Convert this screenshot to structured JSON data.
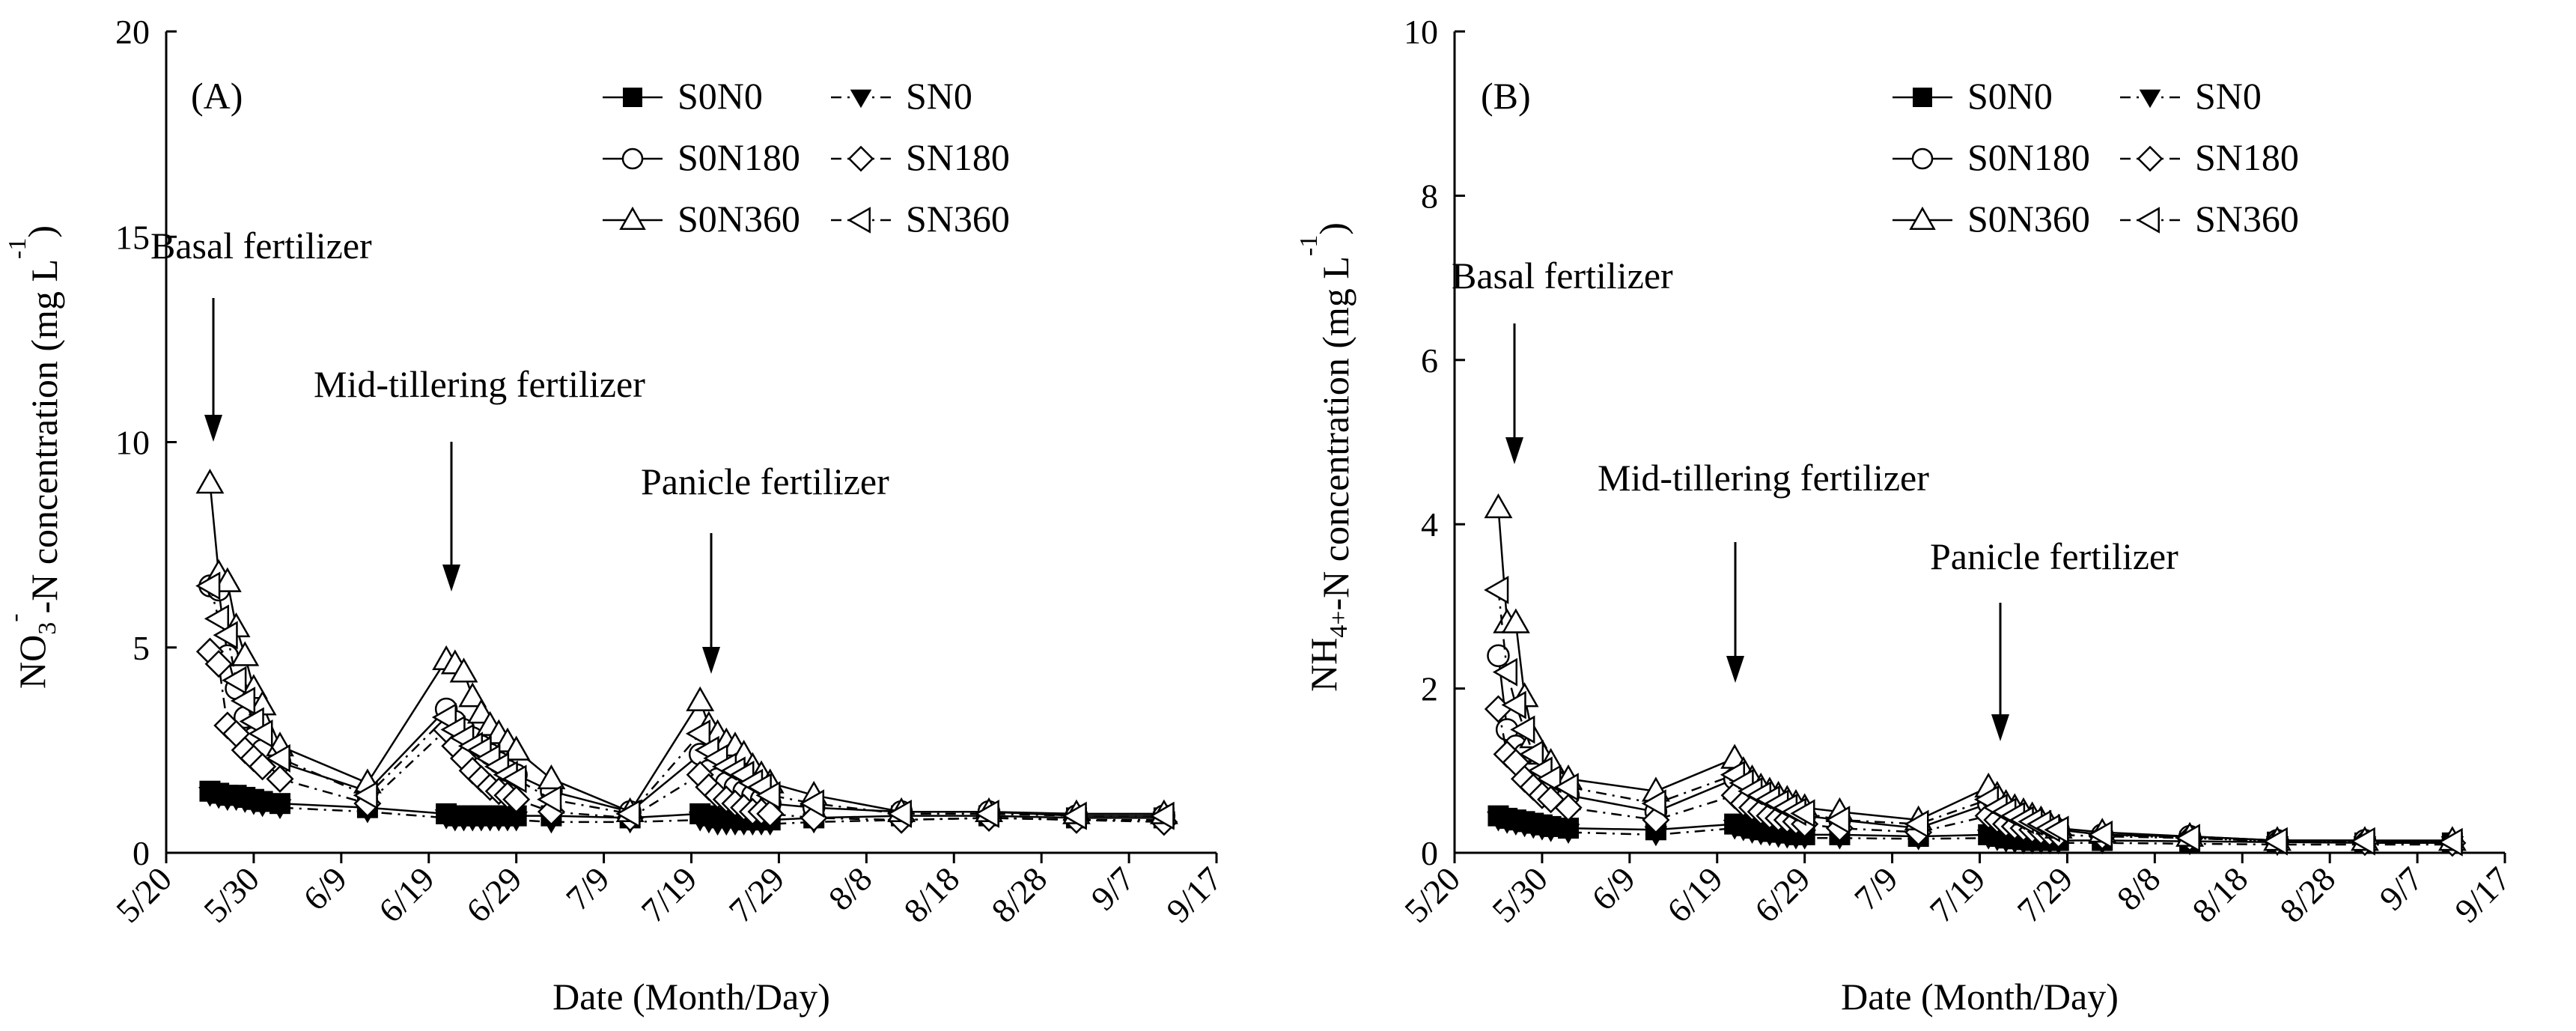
{
  "chart_data": [
    {
      "type": "line",
      "panel_label": "(A)",
      "xlabel": "Date (Month/Day)",
      "ylabel_parts": [
        "NO",
        "3",
        "-",
        "-N concentration (mg L",
        "-1",
        ")"
      ],
      "ylim": [
        0,
        20
      ],
      "yticks": [
        "0",
        "5",
        "10",
        "15",
        "20"
      ],
      "xticks": [
        "5/20",
        "5/30",
        "6/9",
        "6/19",
        "6/29",
        "7/9",
        "7/19",
        "7/29",
        "8/8",
        "8/18",
        "8/28",
        "9/7",
        "9/17"
      ],
      "legend_position": "top-right",
      "annotations": [
        "Basal fertilizer",
        "Mid-tillering fertilizer",
        "Panicle fertilizer"
      ],
      "series": [
        {
          "name": "S0N0",
          "marker": "filled-square",
          "line": "solid",
          "x": [
            "5/25",
            "5/26",
            "5/27",
            "5/28",
            "5/29",
            "5/30",
            "5/31",
            "6/2",
            "6/12",
            "6/21",
            "6/22",
            "6/23",
            "6/24",
            "6/25",
            "6/26",
            "6/27",
            "6/28",
            "6/29",
            "7/3",
            "7/12",
            "7/20",
            "7/21",
            "7/22",
            "7/23",
            "7/24",
            "7/25",
            "7/26",
            "7/27",
            "7/28",
            "8/2",
            "8/12",
            "8/22",
            "9/1",
            "9/11"
          ],
          "y": [
            1.5,
            1.45,
            1.4,
            1.4,
            1.35,
            1.3,
            1.25,
            1.2,
            1.1,
            0.95,
            0.9,
            0.9,
            0.9,
            0.9,
            0.9,
            0.9,
            0.9,
            0.9,
            0.9,
            0.85,
            0.95,
            0.9,
            0.85,
            0.85,
            0.85,
            0.8,
            0.8,
            0.8,
            0.8,
            0.85,
            0.9,
            0.9,
            0.85,
            0.85
          ]
        },
        {
          "name": "SN0",
          "marker": "filled-down-triangle",
          "line": "dashed",
          "x": [
            "5/25",
            "5/26",
            "5/27",
            "5/28",
            "5/29",
            "5/30",
            "5/31",
            "6/2",
            "6/12",
            "6/21",
            "6/22",
            "6/23",
            "6/24",
            "6/25",
            "6/26",
            "6/27",
            "6/28",
            "6/29",
            "7/3",
            "7/12",
            "7/20",
            "7/21",
            "7/22",
            "7/23",
            "7/24",
            "7/25",
            "7/26",
            "7/27",
            "7/28",
            "8/2",
            "8/12",
            "8/22",
            "9/1",
            "9/11"
          ],
          "y": [
            1.4,
            1.35,
            1.3,
            1.3,
            1.25,
            1.2,
            1.15,
            1.1,
            1.0,
            0.85,
            0.8,
            0.8,
            0.8,
            0.8,
            0.8,
            0.8,
            0.8,
            0.8,
            0.75,
            0.75,
            0.8,
            0.75,
            0.7,
            0.7,
            0.7,
            0.7,
            0.7,
            0.7,
            0.7,
            0.75,
            0.8,
            0.85,
            0.8,
            0.8
          ]
        },
        {
          "name": "S0N180",
          "marker": "open-circle",
          "line": "solid",
          "x": [
            "5/25",
            "5/26",
            "5/27",
            "5/28",
            "5/29",
            "5/30",
            "5/31",
            "6/2",
            "6/12",
            "6/21",
            "6/22",
            "6/23",
            "6/24",
            "6/25",
            "6/26",
            "6/27",
            "6/28",
            "6/29",
            "7/3",
            "7/12",
            "7/20",
            "7/21",
            "7/22",
            "7/23",
            "7/24",
            "7/25",
            "7/26",
            "7/27",
            "7/28",
            "8/2",
            "8/12",
            "8/22",
            "9/1",
            "9/11"
          ],
          "y": [
            6.5,
            6.4,
            4.8,
            4.0,
            3.3,
            2.8,
            2.5,
            2.2,
            1.5,
            3.5,
            3.2,
            3.0,
            2.8,
            2.6,
            2.4,
            2.2,
            2.0,
            1.9,
            1.5,
            1.0,
            2.4,
            2.0,
            1.8,
            1.7,
            1.6,
            1.5,
            1.4,
            1.3,
            1.2,
            1.1,
            1.0,
            1.0,
            0.9,
            0.9
          ]
        },
        {
          "name": "SN180",
          "marker": "open-diamond",
          "line": "dashed",
          "x": [
            "5/25",
            "5/26",
            "5/27",
            "5/28",
            "5/29",
            "5/30",
            "5/31",
            "6/2",
            "6/12",
            "6/21",
            "6/22",
            "6/23",
            "6/24",
            "6/25",
            "6/26",
            "6/27",
            "6/28",
            "6/29",
            "7/3",
            "7/12",
            "7/20",
            "7/21",
            "7/22",
            "7/23",
            "7/24",
            "7/25",
            "7/26",
            "7/27",
            "7/28",
            "8/2",
            "8/12",
            "8/22",
            "9/1",
            "9/11"
          ],
          "y": [
            4.9,
            4.6,
            3.1,
            2.9,
            2.5,
            2.3,
            2.1,
            1.8,
            1.2,
            3.0,
            2.6,
            2.3,
            2.0,
            1.8,
            1.6,
            1.5,
            1.4,
            1.3,
            1.0,
            0.85,
            1.9,
            1.6,
            1.4,
            1.3,
            1.2,
            1.1,
            1.0,
            1.0,
            0.95,
            0.85,
            0.8,
            0.85,
            0.8,
            0.75
          ]
        },
        {
          "name": "S0N360",
          "marker": "open-up-triangle",
          "line": "solid",
          "x": [
            "5/25",
            "5/26",
            "5/27",
            "5/28",
            "5/29",
            "5/30",
            "5/31",
            "6/2",
            "6/12",
            "6/21",
            "6/22",
            "6/23",
            "6/24",
            "6/25",
            "6/26",
            "6/27",
            "6/28",
            "6/29",
            "7/3",
            "7/12",
            "7/20",
            "7/21",
            "7/22",
            "7/23",
            "7/24",
            "7/25",
            "7/26",
            "7/27",
            "7/28",
            "8/2",
            "8/12",
            "8/22",
            "9/1",
            "9/11"
          ],
          "y": [
            9.0,
            6.8,
            6.6,
            5.5,
            4.8,
            4.0,
            3.6,
            2.6,
            1.7,
            4.7,
            4.6,
            4.4,
            3.8,
            3.4,
            3.1,
            2.9,
            2.7,
            2.5,
            1.8,
            1.0,
            3.7,
            3.1,
            2.9,
            2.7,
            2.6,
            2.4,
            2.1,
            1.9,
            1.7,
            1.4,
            1.0,
            1.0,
            0.95,
            0.95
          ]
        },
        {
          "name": "SN360",
          "marker": "open-left-triangle",
          "line": "dashed",
          "x": [
            "5/25",
            "5/26",
            "5/27",
            "5/28",
            "5/29",
            "5/30",
            "5/31",
            "6/2",
            "6/12",
            "6/21",
            "6/22",
            "6/23",
            "6/24",
            "6/25",
            "6/26",
            "6/27",
            "6/28",
            "6/29",
            "7/3",
            "7/12",
            "7/20",
            "7/21",
            "7/22",
            "7/23",
            "7/24",
            "7/25",
            "7/26",
            "7/27",
            "7/28",
            "8/2",
            "8/12",
            "8/22",
            "9/1",
            "9/11"
          ],
          "y": [
            6.5,
            5.7,
            5.3,
            4.2,
            3.7,
            3.2,
            2.9,
            2.3,
            1.4,
            3.3,
            3.0,
            2.8,
            2.6,
            2.5,
            2.3,
            2.1,
            1.9,
            1.8,
            1.3,
            0.95,
            2.9,
            2.5,
            2.3,
            2.1,
            2.0,
            1.9,
            1.7,
            1.6,
            1.4,
            1.2,
            0.95,
            0.95,
            0.9,
            0.9
          ]
        }
      ]
    },
    {
      "type": "line",
      "panel_label": "(B)",
      "xlabel": "Date (Month/Day)",
      "ylabel_parts": [
        "NH",
        "4+",
        "",
        "-N concentration (mg L",
        "-1",
        ")"
      ],
      "ylim": [
        0,
        10
      ],
      "yticks": [
        "0",
        "2",
        "4",
        "6",
        "8",
        "10"
      ],
      "xticks": [
        "5/20",
        "5/30",
        "6/9",
        "6/19",
        "6/29",
        "7/9",
        "7/19",
        "7/29",
        "8/8",
        "8/18",
        "8/28",
        "9/7",
        "9/17"
      ],
      "legend_position": "top-right",
      "annotations": [
        "Basal fertilizer",
        "Mid-tillering fertilizer",
        "Panicle fertilizer"
      ],
      "series": [
        {
          "name": "S0N0",
          "marker": "filled-square",
          "line": "solid",
          "x": [
            "5/25",
            "5/26",
            "5/27",
            "5/28",
            "5/29",
            "5/30",
            "5/31",
            "6/2",
            "6/12",
            "6/21",
            "6/22",
            "6/23",
            "6/24",
            "6/25",
            "6/26",
            "6/27",
            "6/28",
            "6/29",
            "7/3",
            "7/12",
            "7/20",
            "7/21",
            "7/22",
            "7/23",
            "7/24",
            "7/25",
            "7/26",
            "7/27",
            "7/28",
            "8/2",
            "8/12",
            "8/22",
            "9/1",
            "9/11"
          ],
          "y": [
            0.45,
            0.42,
            0.4,
            0.38,
            0.36,
            0.34,
            0.32,
            0.3,
            0.28,
            0.35,
            0.33,
            0.3,
            0.28,
            0.26,
            0.25,
            0.24,
            0.22,
            0.22,
            0.22,
            0.2,
            0.22,
            0.2,
            0.18,
            0.17,
            0.16,
            0.15,
            0.15,
            0.15,
            0.15,
            0.15,
            0.14,
            0.13,
            0.12,
            0.12
          ]
        },
        {
          "name": "SN0",
          "marker": "filled-down-triangle",
          "line": "dashed",
          "x": [
            "5/25",
            "5/26",
            "5/27",
            "5/28",
            "5/29",
            "5/30",
            "5/31",
            "6/2",
            "6/12",
            "6/21",
            "6/22",
            "6/23",
            "6/24",
            "6/25",
            "6/26",
            "6/27",
            "6/28",
            "6/29",
            "7/3",
            "7/12",
            "7/20",
            "7/21",
            "7/22",
            "7/23",
            "7/24",
            "7/25",
            "7/26",
            "7/27",
            "7/28",
            "8/2",
            "8/12",
            "8/22",
            "9/1",
            "9/11"
          ],
          "y": [
            0.4,
            0.37,
            0.35,
            0.33,
            0.31,
            0.29,
            0.27,
            0.25,
            0.22,
            0.3,
            0.28,
            0.25,
            0.23,
            0.22,
            0.2,
            0.19,
            0.18,
            0.18,
            0.18,
            0.17,
            0.18,
            0.16,
            0.14,
            0.13,
            0.12,
            0.12,
            0.12,
            0.12,
            0.12,
            0.12,
            0.11,
            0.1,
            0.1,
            0.1
          ]
        },
        {
          "name": "S0N180",
          "marker": "open-circle",
          "line": "solid",
          "x": [
            "5/25",
            "5/26",
            "5/27",
            "5/28",
            "5/29",
            "5/30",
            "5/31",
            "6/2",
            "6/12",
            "6/21",
            "6/22",
            "6/23",
            "6/24",
            "6/25",
            "6/26",
            "6/27",
            "6/28",
            "6/29",
            "7/3",
            "7/12",
            "7/20",
            "7/21",
            "7/22",
            "7/23",
            "7/24",
            "7/25",
            "7/26",
            "7/27",
            "7/28",
            "8/2",
            "8/12",
            "8/22",
            "9/1",
            "9/11"
          ],
          "y": [
            2.4,
            1.5,
            1.3,
            1.2,
            1.0,
            0.9,
            0.8,
            0.7,
            0.5,
            0.9,
            0.8,
            0.7,
            0.65,
            0.6,
            0.55,
            0.5,
            0.48,
            0.45,
            0.4,
            0.3,
            0.6,
            0.5,
            0.45,
            0.4,
            0.38,
            0.35,
            0.32,
            0.3,
            0.28,
            0.22,
            0.2,
            0.15,
            0.15,
            0.12
          ]
        },
        {
          "name": "SN180",
          "marker": "open-diamond",
          "line": "dashed",
          "x": [
            "5/25",
            "5/26",
            "5/27",
            "5/28",
            "5/29",
            "5/30",
            "5/31",
            "6/2",
            "6/12",
            "6/21",
            "6/22",
            "6/23",
            "6/24",
            "6/25",
            "6/26",
            "6/27",
            "6/28",
            "6/29",
            "7/3",
            "7/12",
            "7/20",
            "7/21",
            "7/22",
            "7/23",
            "7/24",
            "7/25",
            "7/26",
            "7/27",
            "7/28",
            "8/2",
            "8/12",
            "8/22",
            "9/1",
            "9/11"
          ],
          "y": [
            1.75,
            1.2,
            1.1,
            0.9,
            0.8,
            0.7,
            0.65,
            0.55,
            0.4,
            0.7,
            0.6,
            0.55,
            0.5,
            0.45,
            0.42,
            0.4,
            0.38,
            0.35,
            0.3,
            0.25,
            0.45,
            0.4,
            0.35,
            0.32,
            0.3,
            0.28,
            0.26,
            0.24,
            0.22,
            0.2,
            0.18,
            0.14,
            0.13,
            0.12
          ]
        },
        {
          "name": "S0N360",
          "marker": "open-up-triangle",
          "line": "solid",
          "x": [
            "5/25",
            "5/26",
            "5/27",
            "5/28",
            "5/29",
            "5/30",
            "5/31",
            "6/2",
            "6/12",
            "6/21",
            "6/22",
            "6/23",
            "6/24",
            "6/25",
            "6/26",
            "6/27",
            "6/28",
            "6/29",
            "7/3",
            "7/12",
            "7/20",
            "7/21",
            "7/22",
            "7/23",
            "7/24",
            "7/25",
            "7/26",
            "7/27",
            "7/28",
            "8/2",
            "8/12",
            "8/22",
            "9/1",
            "9/11"
          ],
          "y": [
            4.2,
            2.8,
            2.8,
            1.9,
            1.4,
            1.2,
            1.1,
            0.9,
            0.75,
            1.15,
            1.0,
            0.9,
            0.8,
            0.75,
            0.7,
            0.65,
            0.6,
            0.55,
            0.5,
            0.4,
            0.8,
            0.7,
            0.6,
            0.55,
            0.5,
            0.45,
            0.4,
            0.35,
            0.3,
            0.25,
            0.2,
            0.15,
            0.15,
            0.15
          ]
        },
        {
          "name": "SN360",
          "marker": "open-left-triangle",
          "line": "dashed",
          "x": [
            "5/25",
            "5/26",
            "5/27",
            "5/28",
            "5/29",
            "5/30",
            "5/31",
            "6/2",
            "6/12",
            "6/21",
            "6/22",
            "6/23",
            "6/24",
            "6/25",
            "6/26",
            "6/27",
            "6/28",
            "6/29",
            "7/3",
            "7/12",
            "7/20",
            "7/21",
            "7/22",
            "7/23",
            "7/24",
            "7/25",
            "7/26",
            "7/27",
            "7/28",
            "8/2",
            "8/12",
            "8/22",
            "9/1",
            "9/11"
          ],
          "y": [
            3.2,
            2.2,
            1.8,
            1.5,
            1.2,
            1.0,
            0.9,
            0.8,
            0.6,
            0.95,
            0.85,
            0.75,
            0.7,
            0.65,
            0.6,
            0.55,
            0.5,
            0.48,
            0.4,
            0.35,
            0.65,
            0.55,
            0.5,
            0.45,
            0.4,
            0.38,
            0.35,
            0.3,
            0.28,
            0.22,
            0.18,
            0.14,
            0.14,
            0.13
          ]
        }
      ]
    }
  ]
}
